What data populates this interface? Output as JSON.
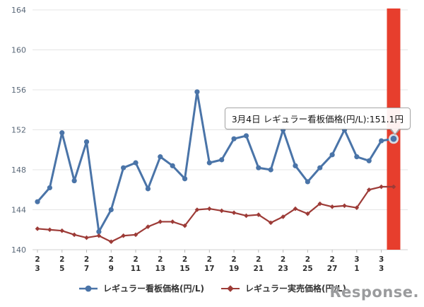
{
  "chart_data": {
    "type": "line",
    "title": "",
    "xlabel": "",
    "ylabel": "",
    "ylim": [
      140,
      164
    ],
    "yticks": [
      "140",
      "144",
      "148",
      "152",
      "156",
      "160",
      "164"
    ],
    "grid": true,
    "legend_position": "bottom",
    "x": [
      "2/3",
      "2/4",
      "2/5",
      "2/6",
      "2/7",
      "2/8",
      "2/9",
      "2/10",
      "2/11",
      "2/12",
      "2/13",
      "2/14",
      "2/15",
      "2/16",
      "2/17",
      "2/18",
      "2/19",
      "2/20",
      "2/21",
      "2/22",
      "2/23",
      "2/24",
      "2/25",
      "2/26",
      "2/27",
      "2/28",
      "3/1",
      "3/2",
      "3/3",
      "3/4"
    ],
    "x_tick_labels": [
      [
        "2",
        "3"
      ],
      [
        "2",
        "5"
      ],
      [
        "2",
        "7"
      ],
      [
        "2",
        "9"
      ],
      [
        "2",
        "11"
      ],
      [
        "2",
        "13"
      ],
      [
        "2",
        "15"
      ],
      [
        "2",
        "17"
      ],
      [
        "2",
        "19"
      ],
      [
        "2",
        "21"
      ],
      [
        "2",
        "23"
      ],
      [
        "2",
        "25"
      ],
      [
        "2",
        "27"
      ],
      [
        "3",
        "1"
      ],
      [
        "3",
        "3"
      ]
    ],
    "series": [
      {
        "name": "レギュラー看板価格(円/L)",
        "color": "#4a74a8",
        "marker": "circle",
        "values": [
          144.8,
          146.2,
          151.7,
          146.9,
          150.8,
          141.8,
          144.0,
          148.2,
          148.7,
          146.1,
          149.3,
          148.4,
          147.1,
          155.8,
          148.7,
          149.0,
          151.1,
          151.4,
          148.2,
          148.0,
          152.0,
          148.4,
          146.8,
          148.2,
          149.5,
          152.0,
          149.3,
          148.9,
          150.9,
          151.1
        ]
      },
      {
        "name": "レギュラー実売価格(円/L)",
        "color": "#9d3b37",
        "marker": "diamond",
        "values": [
          142.1,
          142.0,
          141.9,
          141.5,
          141.2,
          141.4,
          140.8,
          141.4,
          141.5,
          142.3,
          142.8,
          142.8,
          142.4,
          144.0,
          144.1,
          143.9,
          143.7,
          143.4,
          143.5,
          142.7,
          143.3,
          144.1,
          143.6,
          144.6,
          144.3,
          144.4,
          144.2,
          146.0,
          146.3,
          146.3
        ]
      }
    ],
    "highlight": {
      "x": "3/4",
      "series": "レギュラー看板価格(円/L)",
      "value": 151.1,
      "bar_color": "#e73e2d"
    },
    "style": {
      "grid_line": "#e5e5e5",
      "axis_line": "#d2d2d2",
      "tick_color": "#b9b9b9",
      "highlight_ring": "#d8dce3"
    }
  },
  "tooltip": {
    "text": "3月4日 レギュラー看板価格(円/L):151.1円"
  },
  "watermark": {
    "text": "Response."
  }
}
